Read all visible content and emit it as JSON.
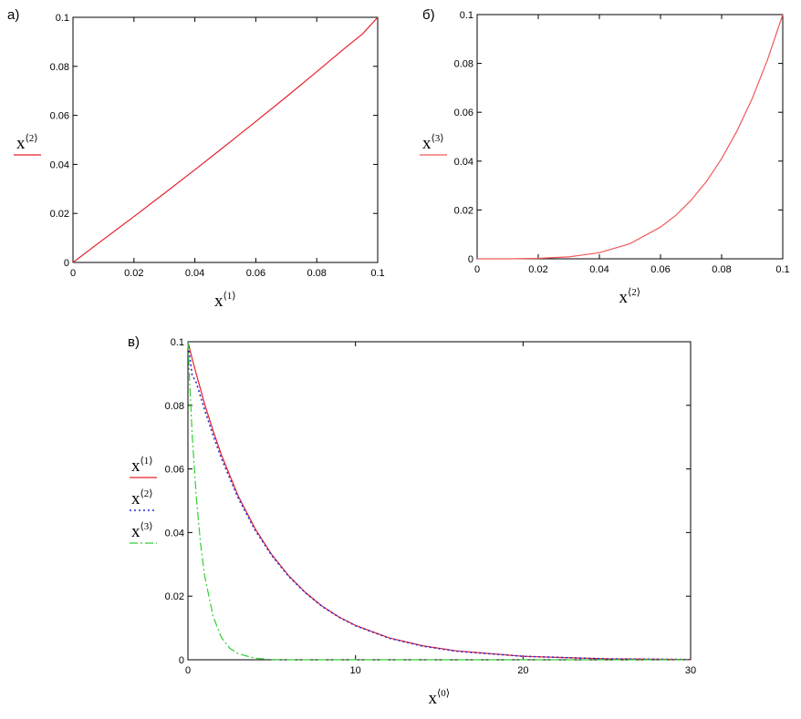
{
  "panels": {
    "a": {
      "label": "а)"
    },
    "b": {
      "label": "б)"
    },
    "c": {
      "label": "в)"
    }
  },
  "chart_data": [
    {
      "id": "a",
      "type": "line",
      "xlabel": {
        "base": "x",
        "sup": "⟨1⟩"
      },
      "ylabel": {
        "base": "x",
        "sup": "⟨2⟩"
      },
      "xlim": [
        0,
        0.1
      ],
      "ylim": [
        0,
        0.1
      ],
      "xticks": [
        "0",
        "0.02",
        "0.04",
        "0.06",
        "0.08",
        "0.1"
      ],
      "yticks": [
        "0",
        "0.02",
        "0.04",
        "0.06",
        "0.08",
        "0.1"
      ],
      "series": [
        {
          "color": "#e8202a",
          "style": "solid",
          "x": [
            0,
            0.01,
            0.02,
            0.03,
            0.04,
            0.05,
            0.06,
            0.07,
            0.08,
            0.09,
            0.095,
            0.1
          ],
          "y": [
            0,
            0.0094,
            0.0187,
            0.0282,
            0.0378,
            0.0476,
            0.0575,
            0.0675,
            0.0778,
            0.0882,
            0.0932,
            0.1
          ]
        }
      ]
    },
    {
      "id": "b",
      "type": "line",
      "xlabel": {
        "base": "x",
        "sup": "⟨2⟩"
      },
      "ylabel": {
        "base": "x",
        "sup": "⟨3⟩"
      },
      "xlim": [
        0,
        0.1
      ],
      "ylim": [
        0,
        0.1
      ],
      "xticks": [
        "0",
        "0.02",
        "0.04",
        "0.06",
        "0.08",
        "0.1"
      ],
      "yticks": [
        "0",
        "0.02",
        "0.04",
        "0.06",
        "0.08",
        "0.1"
      ],
      "series": [
        {
          "color": "#f05a5a",
          "style": "solid",
          "x": [
            0,
            0.01,
            0.02,
            0.03,
            0.04,
            0.05,
            0.06,
            0.065,
            0.07,
            0.075,
            0.08,
            0.085,
            0.09,
            0.095,
            0.1
          ],
          "y": [
            0,
            0,
            0.0002,
            0.0008,
            0.0025,
            0.0062,
            0.013,
            0.0178,
            0.024,
            0.0316,
            0.041,
            0.0523,
            0.0656,
            0.0815,
            0.1
          ]
        }
      ]
    },
    {
      "id": "c",
      "type": "line",
      "xlabel": {
        "base": "x",
        "sup": "⟨0⟩"
      },
      "xlim": [
        0,
        30
      ],
      "ylim": [
        0,
        0.1
      ],
      "xticks": [
        "0",
        "10",
        "20",
        "30"
      ],
      "yticks": [
        "0",
        "0.02",
        "0.04",
        "0.06",
        "0.08",
        "0.1"
      ],
      "legend": [
        {
          "base": "x",
          "sup": "⟨1⟩",
          "color": "#e8202a",
          "style": "solid"
        },
        {
          "base": "x",
          "sup": "⟨2⟩",
          "color": "#2a2ad8",
          "style": "dotted"
        },
        {
          "base": "x",
          "sup": "⟨3⟩",
          "color": "#30d030",
          "style": "dashdot"
        }
      ],
      "series": [
        {
          "color": "#e8202a",
          "style": "solid",
          "x": [
            0,
            0.25,
            0.5,
            1,
            1.5,
            2,
            3,
            4,
            5,
            6,
            7,
            8,
            9,
            10,
            12,
            14,
            16,
            20,
            25,
            30
          ],
          "y": [
            0.1,
            0.0947,
            0.0898,
            0.0803,
            0.072,
            0.0644,
            0.0515,
            0.0413,
            0.0331,
            0.0265,
            0.0212,
            0.0169,
            0.0135,
            0.0108,
            0.0069,
            0.0044,
            0.0028,
            0.0011,
            0.0003,
            0.0001
          ]
        },
        {
          "color": "#2a2ad8",
          "style": "dotted",
          "x": [
            0,
            0.25,
            0.5,
            1,
            1.5,
            2,
            3,
            4,
            5,
            6,
            7,
            8,
            9,
            10,
            12,
            14,
            16,
            20,
            25,
            30
          ],
          "y": [
            0.1,
            0.0895,
            0.0871,
            0.0785,
            0.0706,
            0.0633,
            0.0508,
            0.0408,
            0.0328,
            0.0263,
            0.0211,
            0.0168,
            0.0134,
            0.0107,
            0.0068,
            0.0043,
            0.0027,
            0.0011,
            0.0003,
            0.0001
          ]
        },
        {
          "color": "#30d030",
          "style": "dashdot",
          "x": [
            0,
            0.1,
            0.25,
            0.5,
            0.75,
            1,
            1.5,
            2,
            2.5,
            3,
            4,
            5,
            6,
            8,
            10,
            15,
            20,
            25,
            30
          ],
          "y": [
            0.1,
            0.088,
            0.071,
            0.051,
            0.0366,
            0.0263,
            0.0136,
            0.007,
            0.0036,
            0.0019,
            0.0005,
            0.0001,
            0,
            0,
            0,
            0,
            0,
            0,
            0
          ]
        }
      ]
    }
  ]
}
